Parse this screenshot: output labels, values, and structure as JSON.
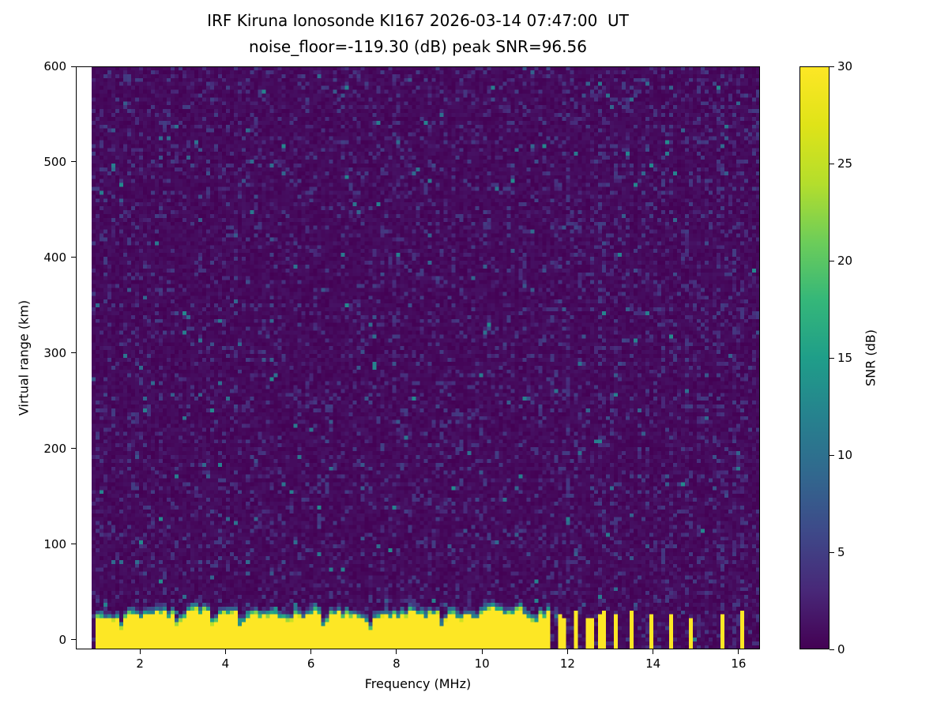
{
  "chart_data": {
    "type": "heatmap",
    "title_line1": "IRF Kiruna Ionosonde KI167 2026-03-14 07:47:00  UT",
    "title_line2": "noise_floor=-119.30 (dB) peak SNR=96.56",
    "station": "IRF Kiruna",
    "instrument": "Ionosonde KI167",
    "timestamp_ut": "2026-03-14 07:47:00 UT",
    "noise_floor_db": -119.3,
    "peak_snr_db": 96.56,
    "xlabel": "Frequency (MHz)",
    "ylabel": "Virtual range (km)",
    "colorbar_label": "SNR (dB)",
    "xlim": [
      0.5,
      16.5
    ],
    "ylim": [
      -10,
      600
    ],
    "snr_range_db": [
      0,
      30
    ],
    "xticks": [
      2,
      4,
      6,
      8,
      10,
      12,
      14,
      16
    ],
    "yticks": [
      0,
      100,
      200,
      300,
      400,
      500,
      600
    ],
    "colorbar_ticks": [
      0,
      5,
      10,
      15,
      20,
      25,
      30
    ],
    "colormap": "viridis",
    "colormap_stops": [
      "#440154",
      "#482878",
      "#3e4989",
      "#31688e",
      "#26828e",
      "#1f9e89",
      "#35b779",
      "#6dcd59",
      "#b4de2c",
      "#dfe318",
      "#fde725"
    ],
    "grid_on": false,
    "legend": "colorbar-right",
    "heatmap_synthesis": {
      "seed": 167,
      "grid_cols": 173,
      "grid_rows": 150,
      "data_f_start_mhz": 0.9,
      "background_snr_db_max": 1.3,
      "speckle_fraction": 0.15,
      "speckle_snr_db": [
        1.5,
        5
      ],
      "bright_speckle_fraction": 0.012,
      "bright_speckle_snr_db": [
        5,
        13
      ],
      "ground_clutter": {
        "f_start_mhz": 0.95,
        "f_end_mhz": 11.6,
        "top_km_mean": 26,
        "top_km_jitter": 9,
        "fringe_km": 9,
        "notches_mhz": [
          1.55,
          2.9,
          3.7,
          4.35,
          6.3,
          7.35,
          9.05
        ]
      },
      "transmitter_comb": {
        "f_start_mhz": 11.65,
        "f_end_mhz": 13.15,
        "period_mhz": 0.13,
        "duty": 0.5
      },
      "isolated_stripes_mhz": [
        13.5,
        13.95,
        14.45,
        14.9,
        15.6,
        16.1
      ],
      "rfi_noisy_columns": {
        "f_start_mhz": 11.6,
        "noisy_col_probability": 0.5,
        "extra_speckle_fraction": [
          0.06,
          0.2
        ]
      }
    }
  }
}
